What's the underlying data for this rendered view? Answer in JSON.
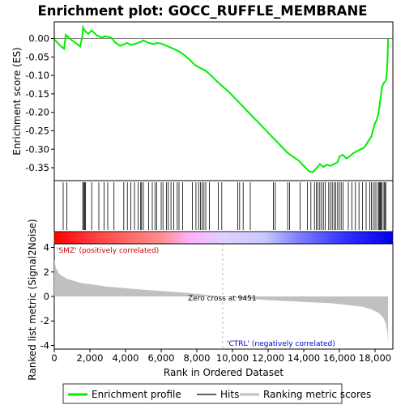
{
  "chart_data": {
    "type": "line",
    "title": "Enrichment plot: GOCC_RUFFLE_MEMBRANE",
    "xlabel": "Rank in Ordered Dataset",
    "ylabel_top": "Enrichment score (ES)",
    "ylabel_bottom": "Ranked list metric (Signal2Noise)",
    "xlim": [
      0,
      19000
    ],
    "x_ticks": [
      0,
      2000,
      4000,
      6000,
      8000,
      10000,
      12000,
      14000,
      16000,
      18000
    ],
    "x_tick_labels": [
      "0",
      "2,000",
      "4,000",
      "6,000",
      "8,000",
      "10,000",
      "12,000",
      "14,000",
      "16,000",
      "18,000"
    ],
    "es_ylim": [
      -0.385,
      0.045
    ],
    "es_y_ticks": [
      0.0,
      -0.05,
      -0.1,
      -0.15,
      -0.2,
      -0.25,
      -0.3,
      -0.35
    ],
    "es_y_tick_labels": [
      "0.00",
      "-0.05",
      "-0.10",
      "-0.15",
      "-0.20",
      "-0.25",
      "-0.30",
      "-0.35"
    ],
    "metric_ylim": [
      -4.3,
      4.3
    ],
    "metric_y_ticks": [
      4,
      2,
      0,
      -2,
      -4
    ],
    "metric_y_tick_labels": [
      "4",
      "2",
      "0",
      "-2",
      "-4"
    ],
    "enrichment_profile": {
      "name": "Enrichment profile",
      "color": "#00ff00",
      "x": [
        0,
        300,
        550,
        650,
        900,
        1200,
        1450,
        1560,
        1620,
        1700,
        1900,
        2100,
        2400,
        2700,
        2800,
        3000,
        3200,
        3400,
        3700,
        3950,
        4100,
        4300,
        4500,
        4700,
        4900,
        5000,
        5300,
        5600,
        5750,
        6000,
        6200,
        6400,
        6700,
        7000,
        7300,
        7600,
        7900,
        8200,
        8500,
        8800,
        9100,
        9451,
        9800,
        10200,
        10600,
        11000,
        11400,
        11800,
        12200,
        12500,
        12800,
        13100,
        13400,
        13700,
        13900,
        14100,
        14300,
        14500,
        14700,
        14900,
        15100,
        15300,
        15500,
        15700,
        15900,
        16000,
        16200,
        16400,
        16600,
        16800,
        17000,
        17200,
        17400,
        17600,
        17800,
        17900,
        18000,
        18100,
        18200,
        18300,
        18400,
        18500,
        18600,
        18650,
        18700,
        18730
      ],
      "y": [
        -0.002,
        -0.018,
        -0.028,
        0.01,
        -0.002,
        -0.012,
        -0.022,
        0.002,
        0.03,
        0.022,
        0.012,
        0.022,
        0.008,
        0.002,
        0.006,
        0.005,
        0.002,
        -0.01,
        -0.02,
        -0.015,
        -0.012,
        -0.018,
        -0.015,
        -0.012,
        -0.008,
        -0.005,
        -0.012,
        -0.015,
        -0.012,
        -0.014,
        -0.018,
        -0.022,
        -0.028,
        -0.035,
        -0.045,
        -0.058,
        -0.072,
        -0.08,
        -0.088,
        -0.1,
        -0.115,
        -0.13,
        -0.145,
        -0.165,
        -0.185,
        -0.205,
        -0.225,
        -0.245,
        -0.265,
        -0.28,
        -0.295,
        -0.31,
        -0.32,
        -0.33,
        -0.34,
        -0.35,
        -0.36,
        -0.362,
        -0.352,
        -0.34,
        -0.348,
        -0.342,
        -0.345,
        -0.34,
        -0.335,
        -0.32,
        -0.315,
        -0.325,
        -0.318,
        -0.31,
        -0.305,
        -0.3,
        -0.295,
        -0.28,
        -0.265,
        -0.245,
        -0.23,
        -0.22,
        -0.2,
        -0.165,
        -0.13,
        -0.12,
        -0.115,
        -0.1,
        -0.06,
        0.0
      ]
    },
    "hits_x": [
      500,
      700,
      1600,
      1650,
      1700,
      1750,
      2100,
      2500,
      2800,
      3000,
      3350,
      3900,
      4100,
      4300,
      4500,
      4700,
      4850,
      4900,
      5000,
      5300,
      5500,
      5650,
      5750,
      6000,
      6100,
      6300,
      6400,
      6550,
      6700,
      6900,
      7000,
      7200,
      7750,
      7950,
      8100,
      8200,
      8300,
      8400,
      8500,
      8700,
      9200,
      9400,
      10300,
      10400,
      10600,
      11000,
      12300,
      12400,
      13100,
      13200,
      13800,
      14200,
      14400,
      14600,
      14700,
      14800,
      14900,
      15000,
      15100,
      15200,
      15400,
      15500,
      15600,
      15700,
      15800,
      15900,
      16000,
      16100,
      16200,
      16500,
      16700,
      16900,
      17100,
      17300,
      17500,
      17700,
      17800,
      17900,
      18000,
      18100,
      18200,
      18250,
      18300,
      18350,
      18400,
      18500,
      18550,
      18600
    ],
    "metric_curve": {
      "x": [
        0,
        100,
        300,
        700,
        1500,
        3000,
        5000,
        7000,
        9451,
        12000,
        14000,
        15500,
        16500,
        17300,
        17800,
        18200,
        18450,
        18600,
        18700,
        18730
      ],
      "y": [
        3.0,
        2.3,
        1.8,
        1.45,
        1.1,
        0.8,
        0.55,
        0.35,
        0.0,
        -0.3,
        -0.45,
        -0.55,
        -0.7,
        -0.85,
        -1.05,
        -1.35,
        -1.7,
        -2.2,
        -3.0,
        -3.9
      ]
    },
    "ranking_bar": {
      "colors": [
        "#ff0000",
        "#ff4040",
        "#ff9090",
        "#ffb0ff",
        "#e0d0ff",
        "#c8c8ff",
        "#8080ff",
        "#3030ff",
        "#0000ee"
      ],
      "positions": [
        0,
        0.12,
        0.32,
        0.4,
        0.5,
        0.62,
        0.72,
        0.86,
        1.0
      ]
    },
    "zero_cross_x": 9451,
    "annotations": {
      "positive": "'SMZ' (positively correlated)",
      "zero_cross": "Zero cross at 9451",
      "negative": "'CTRL' (negatively correlated)"
    },
    "legend": {
      "placement": "bottom",
      "entries": [
        {
          "label": "Enrichment profile",
          "color": "#00ff00"
        },
        {
          "label": "Hits",
          "color": "#000000"
        },
        {
          "label": "Ranking metric scores",
          "color": "#c0c0c0"
        }
      ]
    }
  }
}
